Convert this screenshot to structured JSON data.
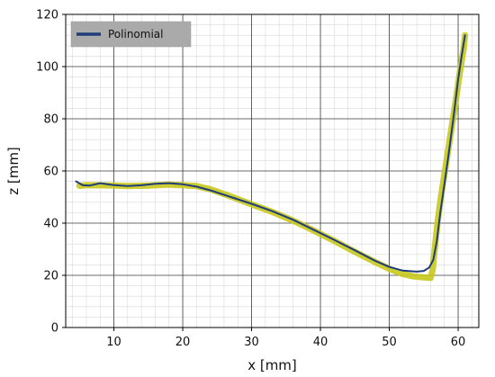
{
  "chart_data": {
    "type": "line",
    "xlabel": "x [mm]",
    "ylabel": "z [mm]",
    "xlim": [
      3,
      63
    ],
    "ylim": [
      0,
      120
    ],
    "x_ticks": [
      10,
      20,
      30,
      40,
      50,
      60
    ],
    "y_ticks": [
      0,
      20,
      40,
      60,
      80,
      100,
      120
    ],
    "x_tick_labels": [
      "10",
      "20",
      "30",
      "40",
      "50",
      "60"
    ],
    "y_tick_labels": [
      "0",
      "20",
      "40",
      "60",
      "80",
      "100",
      "120"
    ],
    "grid": true,
    "minor_grid": true,
    "legend_position": "top-left",
    "legend": [
      {
        "name": "Polinomial",
        "color": "#1f3d7a"
      }
    ],
    "series": [
      {
        "name": "Polinomial",
        "role": "fit",
        "color": "#1f3d7a",
        "x": [
          4.5,
          5.5,
          6.5,
          8,
          10,
          12,
          14,
          16,
          18,
          20,
          22,
          24,
          27,
          30,
          33,
          36,
          39,
          42,
          45,
          48,
          50,
          52,
          54,
          55,
          55.8,
          56.4,
          56.9,
          57.4,
          58,
          58.6,
          59.3,
          60,
          60.5,
          61
        ],
        "y": [
          56,
          54.5,
          54.4,
          55.3,
          54.6,
          54.2,
          54.5,
          55.1,
          55.3,
          54.9,
          54,
          52.6,
          50,
          47.4,
          44.6,
          41.3,
          37.5,
          33.6,
          29.6,
          25.5,
          23.2,
          21.8,
          21.4,
          21.7,
          23,
          26,
          33,
          44,
          55,
          66,
          80,
          95,
          104,
          112
        ]
      },
      {
        "name": "",
        "role": "measured",
        "color": "#c8c81e",
        "x": [
          5,
          6,
          8,
          10,
          12,
          15,
          18,
          20,
          22,
          24,
          27,
          30,
          33,
          36,
          39,
          42,
          45,
          48,
          50,
          52,
          53.5,
          55,
          56,
          56.3,
          56.6,
          57,
          57.5,
          58.2,
          58.9,
          59.6,
          60.2,
          60.8,
          61
        ],
        "y": [
          54.3,
          54.5,
          54.5,
          54.4,
          54.2,
          54.4,
          54.8,
          54.5,
          54.2,
          53,
          50.2,
          47.2,
          44.3,
          41,
          37.2,
          33.2,
          29,
          25,
          22.5,
          20.5,
          19.6,
          19.2,
          19,
          22,
          30,
          40,
          50,
          62,
          74,
          86,
          97,
          107,
          112
        ]
      }
    ]
  }
}
